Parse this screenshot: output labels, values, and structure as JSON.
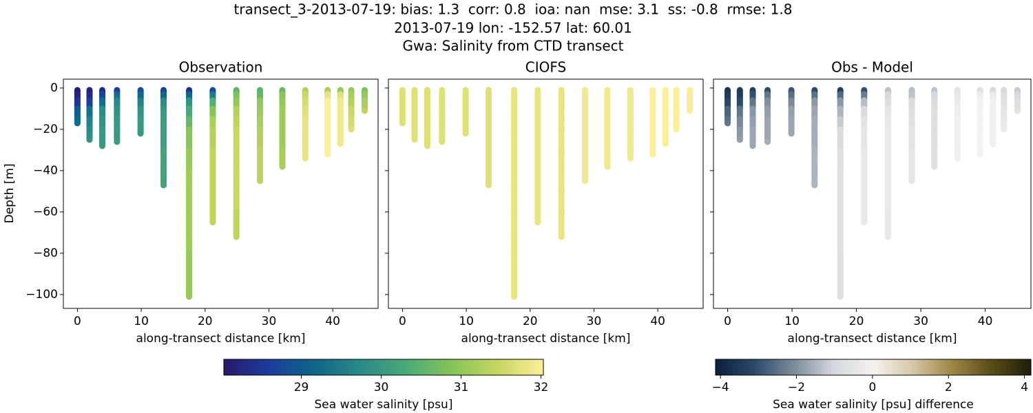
{
  "chart_data": {
    "type": "scatter",
    "title": [
      "transect_3-2013-07-19: bias: 1.3  corr: 0.8  ioa: nan  mse: 3.1  ss: -0.8  rmse: 1.8",
      "2013-07-19 lon: -152.57 lat: 60.01",
      "Gwa: Salinity from CTD transect"
    ],
    "ylabel": "Depth [m]",
    "xlim": [
      -2.2,
      47.1
    ],
    "ylim": [
      -106.7,
      4.3
    ],
    "xticks": [
      0,
      10,
      20,
      30,
      40
    ],
    "yticks": [
      0,
      {
        "value": -20,
        "label": "−20"
      },
      {
        "value": -40,
        "label": "−40"
      },
      {
        "value": -60,
        "label": "−60"
      },
      {
        "value": -80,
        "label": "−80"
      },
      {
        "value": -100,
        "label": "−100"
      }
    ],
    "x": [
      0,
      1.9,
      3.9,
      6.2,
      9.9,
      13.5,
      17.5,
      21.2,
      24.9,
      28.6,
      32.1,
      35.7,
      39.2,
      41.2,
      42.9,
      45
    ],
    "y": [
      [
        -1,
        -3,
        -6,
        -10,
        -15,
        -17
      ],
      [
        -1,
        -3,
        -6,
        -10,
        -15,
        -20,
        -25
      ],
      [
        -1,
        -3,
        -6,
        -10,
        -15,
        -20,
        -28
      ],
      [
        -1,
        -3,
        -6,
        -10,
        -15,
        -20,
        -26
      ],
      [
        -1,
        -3,
        -6,
        -10,
        -15,
        -22
      ],
      [
        -1,
        -3,
        -6,
        -10,
        -15,
        -20,
        -30,
        -40,
        -47
      ],
      [
        -1,
        -3,
        -6,
        -10,
        -15,
        -20,
        -30,
        -40,
        -50,
        -60,
        -70,
        -80,
        -90,
        -101
      ],
      [
        -1,
        -3,
        -6,
        -10,
        -15,
        -20,
        -30,
        -40,
        -50,
        -65
      ],
      [
        -1,
        -3,
        -6,
        -10,
        -15,
        -20,
        -30,
        -40,
        -50,
        -60,
        -72
      ],
      [
        -1,
        -3,
        -6,
        -10,
        -15,
        -20,
        -30,
        -45
      ],
      [
        -1,
        -3,
        -6,
        -10,
        -15,
        -20,
        -30,
        -38
      ],
      [
        -1,
        -3,
        -6,
        -10,
        -15,
        -20,
        -30,
        -34
      ],
      [
        -1,
        -3,
        -6,
        -10,
        -15,
        -20,
        -32
      ],
      [
        -1,
        -3,
        -6,
        -10,
        -15,
        -20,
        -27
      ],
      [
        -1,
        -3,
        -6,
        -10,
        -15,
        -20
      ],
      [
        -1,
        -3,
        -6,
        -11
      ]
    ],
    "panels": [
      {
        "title": "Observation",
        "xlabel": "along-transect distance [km]",
        "ytick_labels": true,
        "colorbar": 0,
        "values": [
          [
            28.1,
            28.2,
            28.5,
            29.0,
            29.2,
            29.3
          ],
          [
            28.2,
            28.3,
            28.6,
            29.3,
            29.6,
            29.8,
            29.9
          ],
          [
            28.4,
            28.7,
            29.3,
            29.8,
            29.9,
            30.0,
            30.0
          ],
          [
            28.6,
            29.3,
            29.7,
            29.9,
            30.0,
            30.0,
            30.1
          ],
          [
            28.8,
            29.2,
            29.6,
            29.9,
            30.0,
            30.0
          ],
          [
            28.6,
            29.2,
            29.8,
            30.0,
            30.1,
            30.1,
            30.2,
            30.2,
            30.2
          ],
          [
            28.4,
            29.2,
            29.9,
            30.3,
            30.6,
            30.9,
            31.0,
            31.1,
            31.1,
            31.1,
            31.1,
            31.0,
            31.0,
            31.0
          ],
          [
            28.8,
            29.5,
            30.4,
            30.9,
            31.2,
            31.3,
            31.4,
            31.4,
            31.4,
            31.4
          ],
          [
            30.5,
            30.8,
            31.0,
            31.3,
            31.4,
            31.5,
            31.5,
            31.5,
            31.5,
            31.4,
            31.4
          ],
          [
            30.5,
            30.6,
            31.0,
            31.1,
            31.2,
            31.3,
            31.4,
            31.4
          ],
          [
            30.6,
            30.9,
            31.0,
            31.1,
            31.1,
            31.1,
            31.2,
            31.2
          ],
          [
            31.3,
            31.5,
            31.6,
            31.7,
            31.8,
            31.8,
            31.8,
            31.8
          ],
          [
            31.2,
            31.8,
            32.0,
            32.0,
            32.0,
            32.0,
            32.0
          ],
          [
            31.0,
            31.7,
            31.9,
            31.9,
            31.9,
            31.9,
            31.9
          ],
          [
            31.0,
            31.2,
            31.3,
            31.5,
            31.6,
            31.7
          ],
          [
            30.8,
            31.0,
            31.2,
            31.4
          ]
        ]
      },
      {
        "title": "CIOFS",
        "xlabel": "along-transect distance [km]",
        "ytick_labels": false,
        "colorbar": 0,
        "values": [
          [
            31.7,
            31.7,
            31.7,
            31.7,
            31.7,
            31.7
          ],
          [
            31.7,
            31.7,
            31.7,
            31.7,
            31.7,
            31.7,
            31.7
          ],
          [
            31.7,
            31.7,
            31.7,
            31.7,
            31.7,
            31.7,
            31.7
          ],
          [
            31.7,
            31.7,
            31.7,
            31.7,
            31.7,
            31.7,
            31.7
          ],
          [
            31.7,
            31.7,
            31.7,
            31.7,
            31.7,
            31.7
          ],
          [
            31.7,
            31.7,
            31.7,
            31.7,
            31.7,
            31.7,
            31.7,
            31.7,
            31.7
          ],
          [
            31.8,
            31.8,
            31.8,
            31.8,
            31.8,
            31.8,
            31.8,
            31.8,
            31.8,
            31.8,
            31.8,
            31.8,
            31.8,
            31.8
          ],
          [
            31.8,
            31.8,
            31.8,
            31.8,
            31.8,
            31.8,
            31.8,
            31.8,
            31.8,
            31.8
          ],
          [
            31.8,
            31.8,
            31.8,
            31.8,
            31.8,
            31.8,
            31.8,
            31.8,
            31.8,
            31.8,
            31.8
          ],
          [
            31.9,
            31.9,
            31.9,
            31.9,
            31.9,
            31.9,
            31.9,
            31.9
          ],
          [
            31.9,
            31.9,
            31.9,
            31.9,
            31.9,
            31.9,
            31.9,
            31.9
          ],
          [
            31.9,
            31.9,
            31.9,
            31.9,
            31.9,
            31.9,
            31.9,
            31.9
          ],
          [
            32.0,
            32.0,
            32.0,
            32.0,
            32.0,
            32.0,
            32.0
          ],
          [
            32.0,
            32.0,
            32.0,
            32.0,
            32.0,
            32.0,
            32.0
          ],
          [
            32.0,
            32.0,
            32.0,
            32.0,
            32.0,
            32.0
          ],
          [
            32.0,
            32.0,
            32.0,
            32.0
          ]
        ]
      },
      {
        "title": "Obs - Model",
        "xlabel": "along-transect distance [km]",
        "ytick_labels": false,
        "colorbar": 1,
        "values": [
          [
            -3.6,
            -3.5,
            -3.2,
            -2.7,
            -2.5,
            -2.4
          ],
          [
            -3.5,
            -3.4,
            -3.1,
            -2.4,
            -2.1,
            -1.9,
            -1.8
          ],
          [
            -3.3,
            -3.0,
            -2.4,
            -1.9,
            -1.8,
            -1.7,
            -1.7
          ],
          [
            -3.1,
            -2.4,
            -2.0,
            -1.8,
            -1.7,
            -1.7,
            -1.6
          ],
          [
            -2.9,
            -2.5,
            -2.1,
            -1.8,
            -1.7,
            -1.7
          ],
          [
            -3.1,
            -2.5,
            -1.9,
            -1.7,
            -1.6,
            -1.6,
            -1.5,
            -1.5,
            -1.5
          ],
          [
            -3.4,
            -2.6,
            -1.9,
            -1.5,
            -1.2,
            -0.9,
            -0.8,
            -0.7,
            -0.7,
            -0.7,
            -0.7,
            -0.8,
            -0.8,
            -0.8
          ],
          [
            -3.0,
            -2.3,
            -1.4,
            -0.9,
            -0.6,
            -0.5,
            -0.4,
            -0.4,
            -0.4,
            -0.4
          ],
          [
            -1.3,
            -1.0,
            -0.8,
            -0.5,
            -0.4,
            -0.3,
            -0.3,
            -0.3,
            -0.3,
            -0.4,
            -0.4
          ],
          [
            -1.4,
            -1.3,
            -0.9,
            -0.8,
            -0.7,
            -0.6,
            -0.5,
            -0.5
          ],
          [
            -1.3,
            -1.0,
            -0.9,
            -0.8,
            -0.8,
            -0.8,
            -0.7,
            -0.7
          ],
          [
            -0.6,
            -0.4,
            -0.3,
            -0.2,
            -0.1,
            -0.1,
            -0.1,
            -0.1
          ],
          [
            -0.8,
            -0.2,
            0,
            0,
            0,
            0,
            0
          ],
          [
            -1.0,
            -0.3,
            -0.1,
            -0.1,
            -0.1,
            -0.1,
            -0.1
          ],
          [
            -1.0,
            -0.8,
            -0.7,
            -0.5,
            -0.4,
            -0.3
          ],
          [
            -1.2,
            -1.0,
            -0.8,
            -0.6
          ]
        ]
      }
    ],
    "colorbars": [
      {
        "label": "Sea water salinity [psu]",
        "clim": [
          28.03,
          32.03
        ],
        "ticks": [
          29,
          30,
          31,
          32
        ],
        "colormap": [
          "#2a186c",
          "#1b3d9b",
          "#0f6689",
          "#2a8a87",
          "#4aa97a",
          "#86c459",
          "#c6d65f",
          "#fdef9a"
        ]
      },
      {
        "label": "Sea water salinity [psu] difference",
        "clim": [
          -4.13,
          4.17
        ],
        "ticks": [
          {
            "value": -4,
            "label": "−4"
          },
          {
            "value": -2,
            "label": "−2"
          },
          0,
          2,
          4
        ],
        "colormap": [
          "#0a1f3a",
          "#2b4b6a",
          "#7d8c9c",
          "#d5d8db",
          "#f5f3f0",
          "#d6c8a8",
          "#9c8645",
          "#5a4c17",
          "#1c1e0b"
        ]
      }
    ]
  }
}
